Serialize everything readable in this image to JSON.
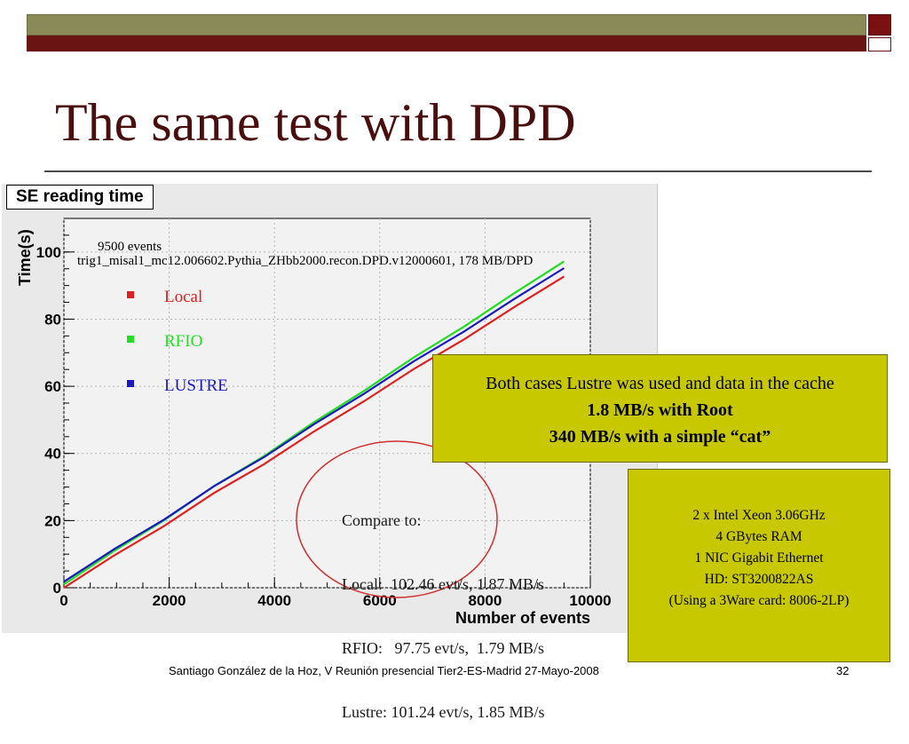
{
  "slide": {
    "title": "The same test with DPD",
    "footer": "Santiago González de la Hoz, V Reunión presencial Tier2-ES-Madrid  27-Mayo-2008",
    "page_number": "32"
  },
  "chart_data": {
    "type": "line",
    "title": "SE reading time",
    "xlabel": "Number of events",
    "ylabel": "Time(s)",
    "xlim": [
      0,
      10000
    ],
    "ylim": [
      0,
      110
    ],
    "xticks": [
      0,
      2000,
      4000,
      6000,
      8000,
      10000
    ],
    "yticks": [
      0,
      20,
      40,
      60,
      80,
      100
    ],
    "grid": true,
    "annotations": [
      "9500 events",
      "trig1_misal1_mc12.006602.Pythia_ZHbb2000.recon.DPD.v12000601, 178 MB/DPD"
    ],
    "legend_position": "upper-left",
    "series": [
      {
        "name": "Local",
        "color": "#e02020",
        "x": [
          0,
          9500
        ],
        "y": [
          0,
          92.7
        ]
      },
      {
        "name": "RFIO",
        "color": "#22dd22",
        "x": [
          0,
          9500
        ],
        "y": [
          1,
          97.2
        ]
      },
      {
        "name": "LUSTRE",
        "color": "#1a1ac0",
        "x": [
          0,
          9500
        ],
        "y": [
          1.8,
          95.2
        ]
      }
    ]
  },
  "compare": {
    "heading": "Compare to:",
    "lines": [
      "Local:  102.46 evt/s, 1.87 MB/s",
      "RFIO:   97.75 evt/s,  1.79 MB/s",
      "Lustre: 101.24 evt/s, 1.85 MB/s"
    ]
  },
  "callout_cache": {
    "line1": "Both cases Lustre was used and data in the cache",
    "line2": "1.8 MB/s with Root",
    "line3": "340 MB/s with a simple “cat”"
  },
  "callout_hw": {
    "lines": [
      "2 x Intel Xeon  3.06GHz",
      "4 GBytes RAM",
      "1 NIC Gigabit Ethernet",
      "HD: ST3200822AS",
      "(Using a 3Ware card: 8006-2LP)"
    ]
  },
  "colors": {
    "title": "#4a0e0e",
    "callout": "#c8c800",
    "circle": "#d03030"
  }
}
